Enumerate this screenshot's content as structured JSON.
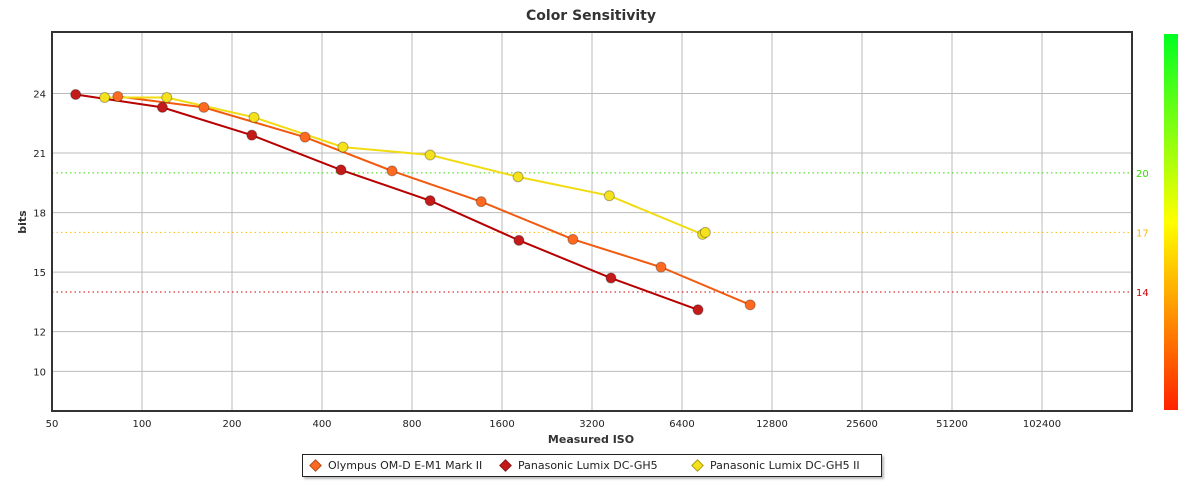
{
  "chart_data": {
    "type": "line",
    "title": "Color Sensitivity",
    "xlabel": "Measured ISO",
    "ylabel": "bits",
    "xscale": "log2",
    "xlim": [
      50,
      204800
    ],
    "ylim": [
      8,
      27.1
    ],
    "x_ticks": [
      50,
      100,
      200,
      400,
      800,
      1600,
      3200,
      6400,
      12800,
      25600,
      51200,
      102400
    ],
    "y_ticks": [
      10,
      12,
      15,
      18,
      21,
      24
    ],
    "grid": true,
    "legend_position": "bottom",
    "reference_lines": [
      {
        "value": 20,
        "label": "20",
        "color": "#33dd00"
      },
      {
        "value": 17,
        "label": "17",
        "color": "#ffbb00"
      },
      {
        "value": 14,
        "label": "14",
        "color": "#cc0000"
      }
    ],
    "colorbar": {
      "top_color": "#00ff22",
      "mid_color": "#ffff00",
      "bottom_color": "#ff2200"
    },
    "series": [
      {
        "name": "Olympus OM-D E-M1 Mark II",
        "color": "#f25a10",
        "marker": "#ff6a20",
        "x": [
          83,
          161,
          351,
          686,
          1363,
          2762,
          5446,
          10820
        ],
        "y": [
          23.85,
          23.3,
          21.8,
          20.1,
          18.55,
          16.65,
          15.25,
          13.35
        ]
      },
      {
        "name": "Panasonic Lumix DC-GH5",
        "color": "#b80000",
        "marker": "#c41a1a",
        "x": [
          60,
          117,
          233,
          463,
          920,
          1823,
          3704,
          7239
        ],
        "y": [
          23.95,
          23.3,
          21.9,
          20.15,
          18.6,
          16.6,
          14.7,
          13.1
        ]
      },
      {
        "name": "Panasonic Lumix DC-GH5 II",
        "color": "#f0dc10",
        "marker": "#f6e21c",
        "x": [
          75,
          121,
          237,
          470,
          920,
          1811,
          3657,
          7500,
          7660
        ],
        "y": [
          23.8,
          23.8,
          22.8,
          21.3,
          20.9,
          19.8,
          18.85,
          16.9,
          17.0
        ]
      }
    ]
  }
}
